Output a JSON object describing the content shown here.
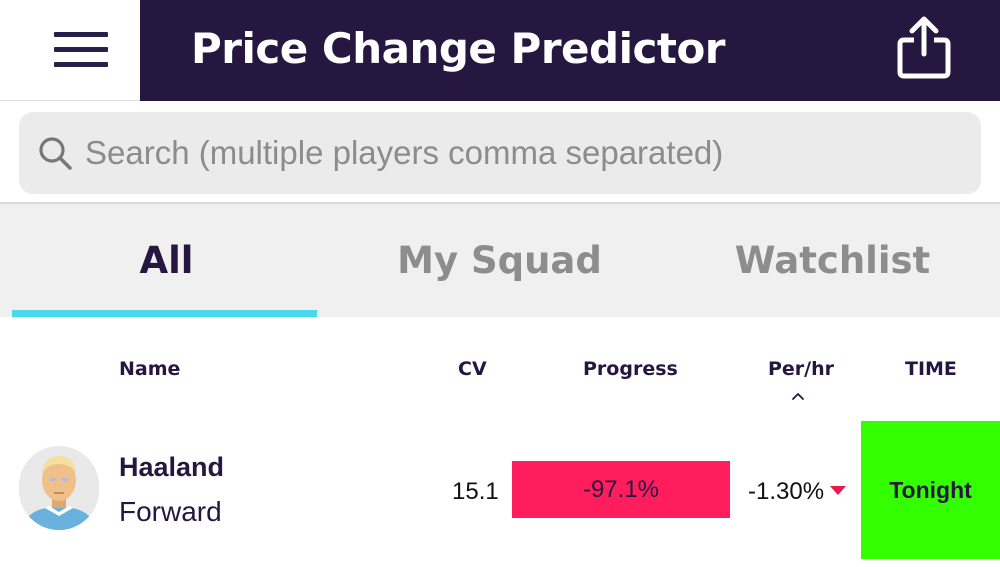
{
  "header": {
    "title": "Price Change Predictor",
    "menu_icon": "hamburger-menu-icon",
    "share_icon": "share-icon",
    "bar_color": "#25173f"
  },
  "search": {
    "placeholder": "Search (multiple players comma separated)",
    "value": "",
    "icon": "search-icon"
  },
  "tabs": [
    {
      "label": "All",
      "active": true
    },
    {
      "label": "My Squad",
      "active": false
    },
    {
      "label": "Watchlist",
      "active": false
    }
  ],
  "table": {
    "columns": [
      "Name",
      "CV",
      "Progress",
      "Per/hr",
      "TIME"
    ],
    "sort_indicator": "^",
    "rows": [
      {
        "name": "Haaland",
        "position": "Forward",
        "cv": "15.1",
        "progress": "-97.1%",
        "per_hr": "-1.30%",
        "trend": "down",
        "time": "Tonight",
        "progress_color": "#ff1d5d",
        "time_color": "#33ff00"
      }
    ]
  },
  "colors": {
    "accent": "#4ad8ec",
    "primary_text": "#25173f",
    "trend_down": "#e8174f"
  }
}
